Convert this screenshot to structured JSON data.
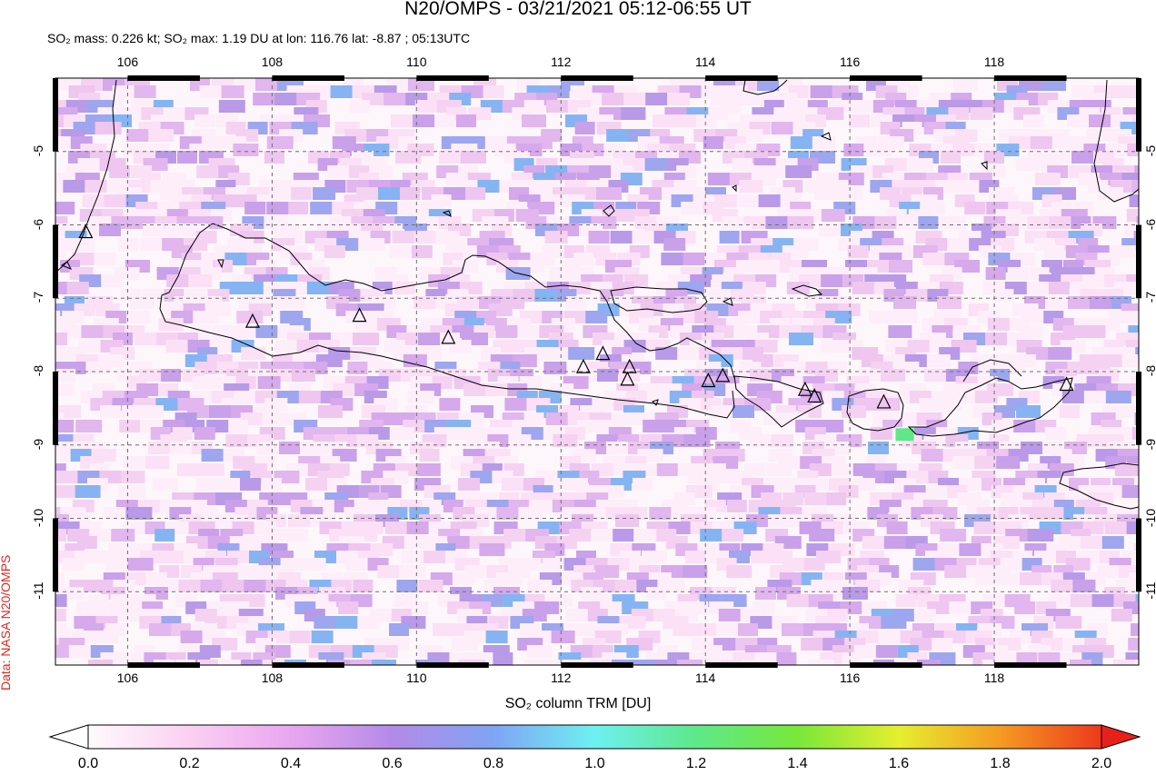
{
  "title": "N20/OMPS - 03/21/2021 05:12-06:55 UT",
  "subtitle": "SO₂ mass: 0.226 kt; SO₂ max: 1.19 DU at lon: 116.76 lat: -8.87 ; 05:13UTC",
  "credit": "Data: NASA N20/OMPS",
  "colorbar_label": "SO₂ column TRM [DU]",
  "map": {
    "lon_ticks": [
      "106",
      "108",
      "110",
      "112",
      "114",
      "116",
      "118"
    ],
    "lat_ticks": [
      "-5",
      "-6",
      "-7",
      "-8",
      "-9",
      "-10",
      "-11"
    ],
    "lon_range": [
      105.0,
      120.0
    ],
    "lat_range": [
      -12.0,
      -4.0
    ],
    "grid": true,
    "max_marker": {
      "lon": 116.76,
      "lat": -8.87,
      "value_du": 1.19
    },
    "volcano_icon": "triangle-outline",
    "coastline_color": "#000000"
  },
  "colorbar": {
    "ticks": [
      "0.0",
      "0.2",
      "0.4",
      "0.6",
      "0.8",
      "1.0",
      "1.2",
      "1.4",
      "1.6",
      "1.8",
      "2.0"
    ],
    "min": 0.0,
    "max": 2.0,
    "under_color": "#ffffff",
    "over_color": "#e8201a",
    "stops": [
      "#fffafc",
      "#fbd0f2",
      "#e9a6f0",
      "#b48ae8",
      "#7fa4f4",
      "#6ef0f2",
      "#5ee88a",
      "#78e83a",
      "#e6ee30",
      "#f59a22",
      "#ec3a1c"
    ]
  }
}
